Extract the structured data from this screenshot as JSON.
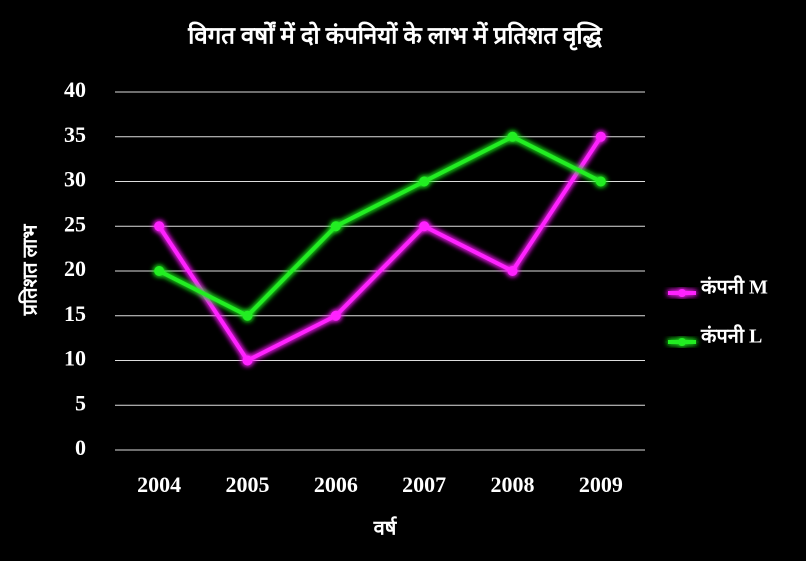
{
  "chart_data": {
    "type": "line",
    "title": "विगत वर्षों में दो कंपनियों के लाभ में प्रतिशत वृद्धि",
    "x_label": "वर्ष",
    "y_label": "प्रतिशत लाभ",
    "categories": [
      "2004",
      "2005",
      "2006",
      "2007",
      "2008",
      "2009"
    ],
    "series": [
      {
        "name": "कंपनी M",
        "color": "#ff22ff",
        "values": [
          25,
          10,
          15,
          25,
          20,
          35
        ]
      },
      {
        "name": "कंपनी L",
        "color": "#22ee22",
        "values": [
          20,
          15,
          25,
          30,
          35,
          30
        ]
      }
    ],
    "ylim": [
      0,
      40
    ],
    "yticks": [
      0,
      5,
      10,
      15,
      20,
      25,
      30,
      35,
      40
    ],
    "grid": true,
    "legend": "right"
  }
}
